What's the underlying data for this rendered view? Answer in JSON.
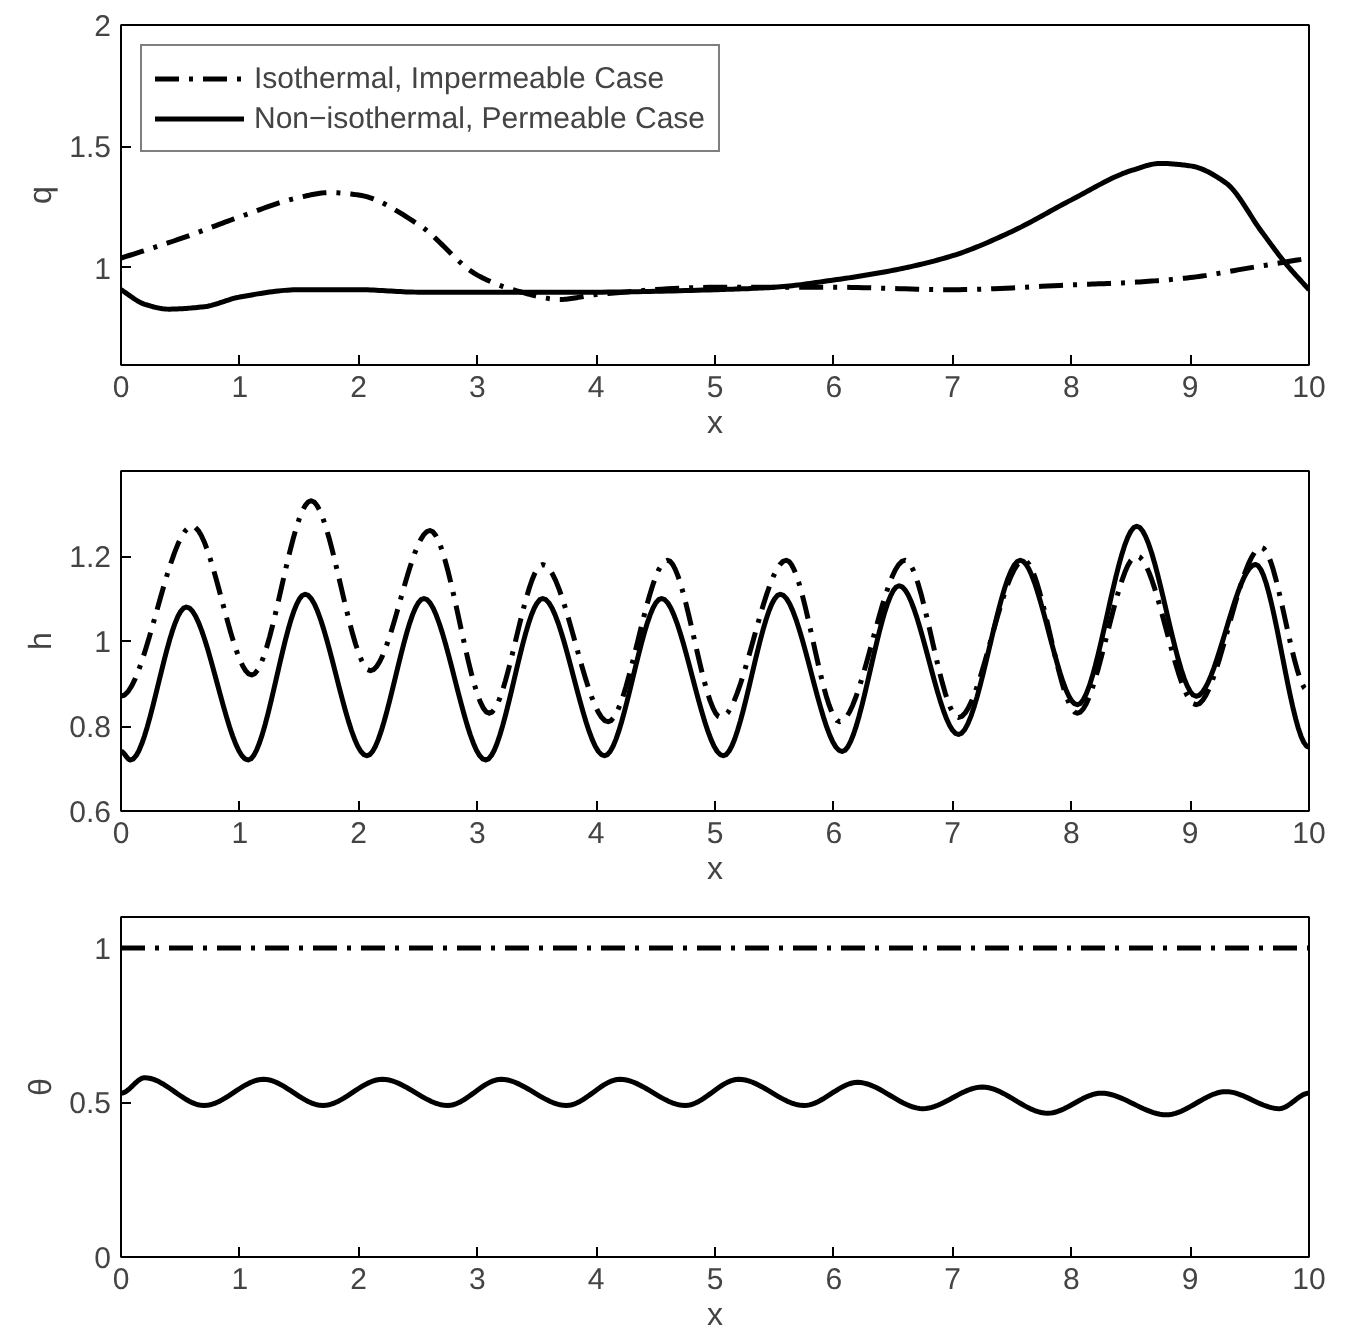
{
  "chart_data": [
    {
      "type": "line",
      "xlabel": "x",
      "ylabel": "q",
      "xlim": [
        0,
        10
      ],
      "xticks": [
        0,
        1,
        2,
        3,
        4,
        5,
        6,
        7,
        8,
        9,
        10
      ],
      "ylim": [
        0.6,
        2
      ],
      "yticks": [
        1,
        1.5,
        2
      ],
      "grid": false,
      "legend": "top left",
      "series": [
        {
          "name": "Isothermal, Impermeable Case",
          "color": "#000000",
          "line_style": "dashdot",
          "x": [
            0,
            0.5,
            1,
            1.5,
            1.75,
            2,
            2.5,
            3,
            3.3,
            3.7,
            4,
            5,
            6,
            7,
            8,
            8.5,
            9,
            9.5,
            10
          ],
          "values": [
            1.04,
            1.12,
            1.21,
            1.29,
            1.31,
            1.3,
            1.18,
            0.97,
            0.91,
            0.87,
            0.89,
            0.92,
            0.92,
            0.91,
            0.93,
            0.94,
            0.96,
            1.0,
            1.04
          ]
        },
        {
          "name": "Non−isothermal, Permeable Case",
          "color": "#000000",
          "line_style": "solid",
          "x": [
            0,
            0.2,
            0.4,
            0.7,
            1,
            1.5,
            2,
            2.5,
            3,
            4,
            5,
            5.5,
            6,
            6.5,
            7,
            7.5,
            8,
            8.5,
            8.75,
            9,
            9.3,
            9.6,
            9.8,
            10
          ],
          "values": [
            0.91,
            0.85,
            0.83,
            0.84,
            0.88,
            0.91,
            0.91,
            0.9,
            0.9,
            0.9,
            0.91,
            0.92,
            0.95,
            0.99,
            1.05,
            1.15,
            1.28,
            1.4,
            1.43,
            1.42,
            1.35,
            1.15,
            1.02,
            0.91
          ]
        }
      ]
    },
    {
      "type": "line",
      "xlabel": "x",
      "ylabel": "h",
      "xlim": [
        0,
        10
      ],
      "xticks": [
        0,
        1,
        2,
        3,
        4,
        5,
        6,
        7,
        8,
        9,
        10
      ],
      "ylim": [
        0.6,
        1.4
      ],
      "yticks": [
        0.6,
        0.8,
        1,
        1.2
      ],
      "grid": false,
      "legend": false,
      "series": [
        {
          "color": "#000000",
          "line_style": "dashdot",
          "x": [
            0,
            0.6,
            1.1,
            1.6,
            2.1,
            2.6,
            3.1,
            3.55,
            4.1,
            4.6,
            5.05,
            5.6,
            6.05,
            6.6,
            7.05,
            7.6,
            8.05,
            8.55,
            9.05,
            9.6,
            10
          ],
          "values": [
            0.87,
            1.27,
            0.92,
            1.33,
            0.93,
            1.26,
            0.83,
            1.18,
            0.81,
            1.19,
            0.82,
            1.19,
            0.81,
            1.19,
            0.82,
            1.19,
            0.83,
            1.2,
            0.85,
            1.22,
            0.88
          ]
        },
        {
          "color": "#000000",
          "line_style": "solid",
          "x": [
            0,
            0.08,
            0.55,
            1.07,
            1.55,
            2.07,
            2.55,
            3.07,
            3.55,
            4.07,
            4.55,
            5.07,
            5.55,
            6.07,
            6.55,
            7.05,
            7.57,
            8.05,
            8.55,
            9.05,
            9.55,
            10
          ],
          "values": [
            0.74,
            0.72,
            1.08,
            0.72,
            1.11,
            0.73,
            1.1,
            0.72,
            1.1,
            0.73,
            1.1,
            0.73,
            1.11,
            0.74,
            1.13,
            0.78,
            1.19,
            0.85,
            1.27,
            0.87,
            1.18,
            0.75
          ]
        }
      ]
    },
    {
      "type": "line",
      "xlabel": "x",
      "ylabel": "θ",
      "xlim": [
        0,
        10
      ],
      "xticks": [
        0,
        1,
        2,
        3,
        4,
        5,
        6,
        7,
        8,
        9,
        10
      ],
      "ylim": [
        0,
        1.1
      ],
      "yticks": [
        0,
        0.5,
        1
      ],
      "grid": false,
      "legend": false,
      "series": [
        {
          "color": "#000000",
          "line_style": "dashdot",
          "x": [
            0,
            5,
            10
          ],
          "values": [
            1,
            1,
            1
          ]
        },
        {
          "color": "#000000",
          "line_style": "solid",
          "x": [
            0,
            0.2,
            0.7,
            1.2,
            1.7,
            2.2,
            2.75,
            3.2,
            3.75,
            4.2,
            4.75,
            5.2,
            5.75,
            6.2,
            6.75,
            7.25,
            7.8,
            8.25,
            8.8,
            9.3,
            9.75,
            10
          ],
          "values": [
            0.53,
            0.58,
            0.49,
            0.575,
            0.49,
            0.575,
            0.49,
            0.575,
            0.49,
            0.575,
            0.49,
            0.575,
            0.49,
            0.565,
            0.48,
            0.55,
            0.465,
            0.53,
            0.46,
            0.535,
            0.48,
            0.53
          ]
        }
      ]
    }
  ]
}
